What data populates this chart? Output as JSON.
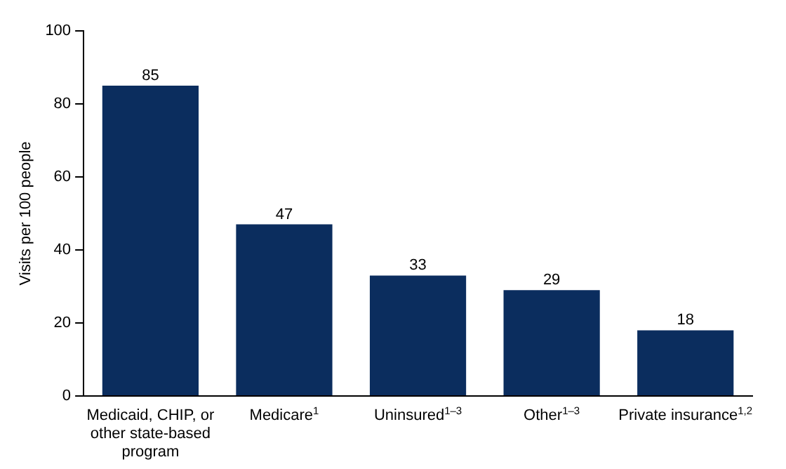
{
  "chart_data": {
    "type": "bar",
    "ylabel": "Visits per 100 people",
    "categories": [
      "Medicaid, CHIP, or other state-based program",
      "Medicare$^{1}$",
      "Uninsured$^{1–3}$",
      "Other$^{1–3}$",
      "Private insurance$^{1,2}$"
    ],
    "values": [
      85,
      47,
      33,
      29,
      18
    ],
    "color": "#0b2d5e",
    "ylim": [
      0,
      100
    ],
    "yticks": [
      0,
      20,
      40,
      60,
      80,
      100
    ],
    "grid": false,
    "legend": false,
    "data_labels": true
  }
}
